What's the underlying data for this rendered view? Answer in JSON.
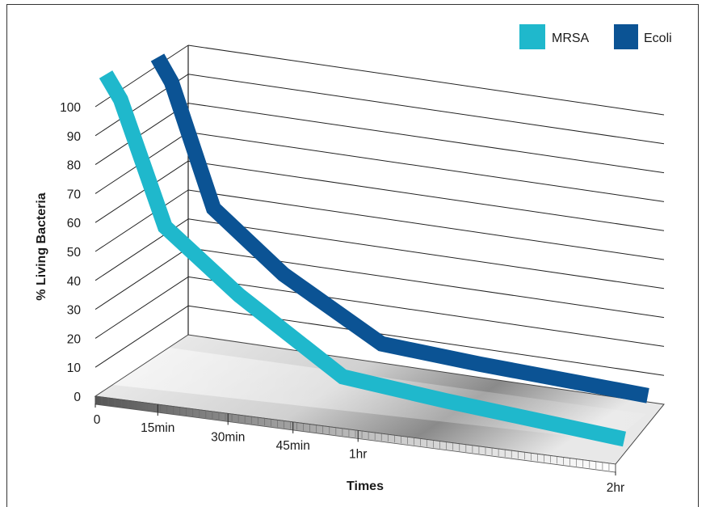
{
  "chart_data": {
    "type": "line",
    "title": "",
    "xlabel": "Times",
    "ylabel": "% Living Bacteria",
    "categories": [
      "0",
      "15min",
      "30min",
      "45min",
      "1hr",
      "2hr"
    ],
    "yticks": [
      "0",
      "10",
      "20",
      "30",
      "40",
      "50",
      "60",
      "70",
      "80",
      "90",
      "100"
    ],
    "ylim": [
      0,
      100
    ],
    "grid": true,
    "legend_position": "top-right",
    "series": [
      {
        "name": "MRSA",
        "color": "#1fb8cc",
        "points": [
          [
            0,
            100
          ],
          [
            0.2,
            92
          ],
          [
            0.8,
            50
          ],
          [
            1.8,
            30
          ],
          [
            3.2,
            7
          ],
          [
            4.6,
            4
          ],
          [
            7.0,
            0
          ]
        ]
      },
      {
        "name": "Ecoli",
        "color": "#0b5394",
        "points": [
          [
            0,
            100
          ],
          [
            0.2,
            92
          ],
          [
            0.8,
            50
          ],
          [
            1.8,
            30
          ],
          [
            3.2,
            10
          ],
          [
            4.6,
            7
          ],
          [
            7.0,
            3
          ]
        ]
      }
    ]
  }
}
